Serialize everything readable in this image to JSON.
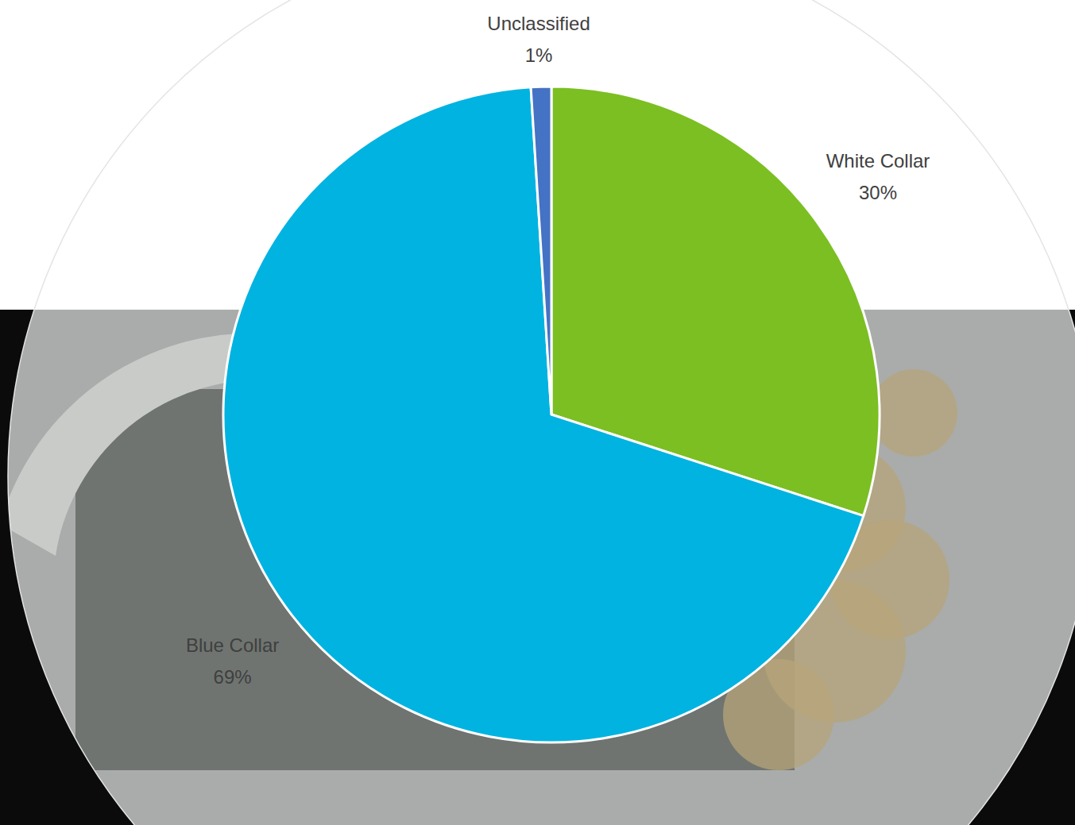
{
  "chart_data": {
    "type": "pie",
    "categories": [
      "White Collar",
      "Blue Collar",
      "Unclassified"
    ],
    "values": [
      30,
      69,
      1
    ],
    "value_labels": [
      "30%",
      "69%",
      "1%"
    ],
    "colors": [
      "#7BBF22",
      "#00B3E0",
      "#4472C4"
    ],
    "data_labels": true
  }
}
